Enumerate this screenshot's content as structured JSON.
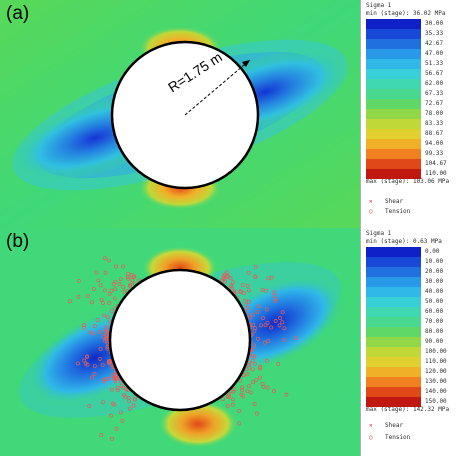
{
  "panel_a": {
    "label": "(a)",
    "radius_label": "R=1.75 m",
    "legend": {
      "title": "Sigma 1",
      "min_text": "min (stage): 36.02 MPa",
      "max_text": "max (stage): 103.06 MPa",
      "ticks": [
        "30.00",
        "35.33",
        "42.67",
        "47.00",
        "51.33",
        "56.67",
        "62.00",
        "67.33",
        "72.67",
        "78.00",
        "83.33",
        "88.67",
        "94.00",
        "99.33",
        "104.67",
        "110.00"
      ],
      "colors": [
        "#1020c8",
        "#1848d8",
        "#2070e0",
        "#2898e8",
        "#30b8e8",
        "#38d0d8",
        "#40d8b0",
        "#48d890",
        "#60d868",
        "#90d848",
        "#c0d838",
        "#e0d030",
        "#f0b028",
        "#f08020",
        "#e04818",
        "#c01810"
      ],
      "markers": [
        {
          "symbol": "✕",
          "label": "Shear"
        },
        {
          "symbol": "○",
          "label": "Tension"
        }
      ]
    }
  },
  "panel_b": {
    "label": "(b)",
    "legend": {
      "title": "Sigma 1",
      "min_text": "min (stage): 0.63 MPa",
      "max_text": "max (stage): 142.32 MPa",
      "ticks": [
        "0.00",
        "10.00",
        "20.00",
        "30.00",
        "40.00",
        "50.00",
        "60.00",
        "70.00",
        "80.00",
        "90.00",
        "100.00",
        "110.00",
        "120.00",
        "130.00",
        "140.00",
        "150.00"
      ],
      "colors": [
        "#1020c8",
        "#1848d8",
        "#2070e0",
        "#2898e8",
        "#30b8e8",
        "#38d0d8",
        "#40d8b0",
        "#48d890",
        "#60d868",
        "#90d848",
        "#c0d838",
        "#e0d030",
        "#f0b028",
        "#f08020",
        "#e04818",
        "#c01810"
      ],
      "markers": [
        {
          "symbol": "✕",
          "label": "Shear"
        },
        {
          "symbol": "○",
          "label": "Tension"
        }
      ]
    }
  },
  "colors": {
    "field_green": "#3fd879",
    "low_blue": "#1030d0",
    "high_red": "#e03010",
    "hole_white": "#ffffff"
  }
}
